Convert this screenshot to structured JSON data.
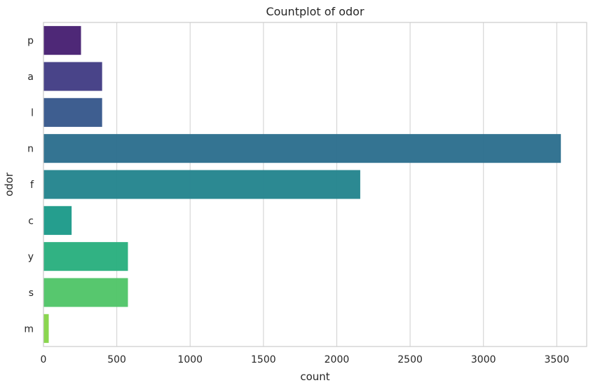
{
  "chart_data": {
    "type": "bar",
    "orientation": "horizontal",
    "title": "Countplot of odor",
    "xlabel": "count",
    "ylabel": "odor",
    "categories": [
      "p",
      "a",
      "l",
      "n",
      "f",
      "c",
      "y",
      "s",
      "m"
    ],
    "values": [
      256,
      400,
      400,
      3528,
      2160,
      192,
      576,
      576,
      36
    ],
    "xlim": [
      0,
      3704
    ],
    "xticks": [
      "0",
      "500",
      "1000",
      "1500",
      "2000",
      "2500",
      "3000",
      "3500"
    ],
    "grid": true,
    "colors": [
      "#482173",
      "#433e85",
      "#38598c",
      "#2d708e",
      "#25858e",
      "#1e9b8a",
      "#2ab07f",
      "#52c569",
      "#86d549",
      "#c2df23"
    ],
    "palette": "viridis"
  }
}
